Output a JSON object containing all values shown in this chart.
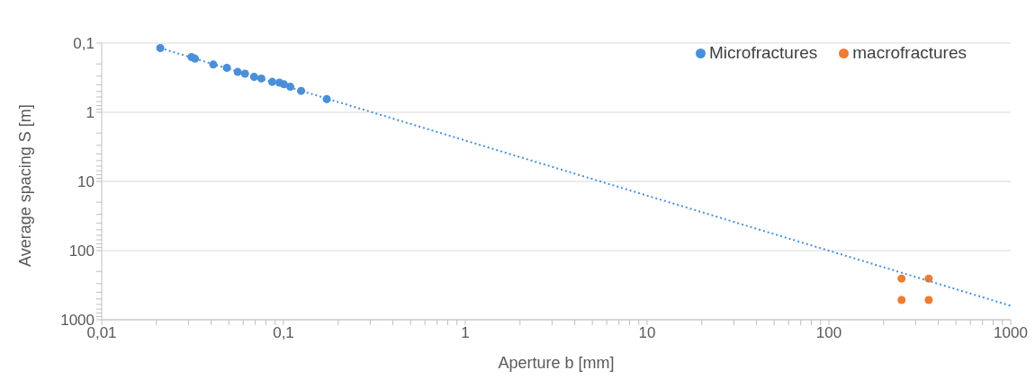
{
  "chart_data": {
    "type": "scatter",
    "xlabel": "Aperture b [mm]",
    "ylabel": "Average spacing S [m]",
    "log": "xy",
    "grid": "y",
    "legend": "top right",
    "marker": "circle",
    "xlim": [
      0.01,
      1000
    ],
    "ylim": [
      1000,
      0.1
    ],
    "xticks": [
      {
        "value": 0.01,
        "label": "0,01"
      },
      {
        "value": 0.02,
        "label": null
      },
      {
        "value": 0.03,
        "label": null
      },
      {
        "value": 0.04,
        "label": null
      },
      {
        "value": 0.05,
        "label": null
      },
      {
        "value": 0.06,
        "label": null
      },
      {
        "value": 0.07,
        "label": null
      },
      {
        "value": 0.08,
        "label": null
      },
      {
        "value": 0.09,
        "label": null
      },
      {
        "value": 0.1,
        "label": "0,1"
      },
      {
        "value": 0.2,
        "label": null
      },
      {
        "value": 0.3,
        "label": null
      },
      {
        "value": 0.4,
        "label": null
      },
      {
        "value": 0.5,
        "label": null
      },
      {
        "value": 0.6,
        "label": null
      },
      {
        "value": 0.7,
        "label": null
      },
      {
        "value": 0.8,
        "label": null
      },
      {
        "value": 0.9,
        "label": null
      },
      1,
      {
        "value": 2,
        "label": null
      },
      {
        "value": 3,
        "label": null
      },
      {
        "value": 4,
        "label": null
      },
      {
        "value": 5,
        "label": null
      },
      {
        "value": 6,
        "label": null
      },
      {
        "value": 7,
        "label": null
      },
      {
        "value": 8,
        "label": null
      },
      {
        "value": 9,
        "label": null
      },
      10,
      {
        "value": 20,
        "label": null
      },
      {
        "value": 30,
        "label": null
      },
      {
        "value": 40,
        "label": null
      },
      {
        "value": 50,
        "label": null
      },
      {
        "value": 60,
        "label": null
      },
      {
        "value": 70,
        "label": null
      },
      {
        "value": 80,
        "label": null
      },
      {
        "value": 90,
        "label": null
      },
      100,
      {
        "value": 200,
        "label": null
      },
      {
        "value": 300,
        "label": null
      },
      {
        "value": 400,
        "label": null
      },
      {
        "value": 500,
        "label": null
      },
      {
        "value": 600,
        "label": null
      },
      {
        "value": 700,
        "label": null
      },
      {
        "value": 800,
        "label": null
      },
      {
        "value": 900,
        "label": null
      },
      1000
    ],
    "yticks": [
      {
        "value": 0.1,
        "label": "0,1"
      },
      {
        "value": 0.2,
        "label": null
      },
      {
        "value": 0.3,
        "label": null
      },
      {
        "value": 0.4,
        "label": null
      },
      {
        "value": 0.5,
        "label": null
      },
      {
        "value": 0.6,
        "label": null
      },
      {
        "value": 0.7,
        "label": null
      },
      {
        "value": 0.8,
        "label": null
      },
      {
        "value": 0.9,
        "label": null
      },
      1,
      {
        "value": 2,
        "label": null
      },
      {
        "value": 3,
        "label": null
      },
      {
        "value": 4,
        "label": null
      },
      {
        "value": 5,
        "label": null
      },
      {
        "value": 6,
        "label": null
      },
      {
        "value": 7,
        "label": null
      },
      {
        "value": 8,
        "label": null
      },
      {
        "value": 9,
        "label": null
      },
      10,
      {
        "value": 20,
        "label": null
      },
      {
        "value": 30,
        "label": null
      },
      {
        "value": 40,
        "label": null
      },
      {
        "value": 50,
        "label": null
      },
      {
        "value": 60,
        "label": null
      },
      {
        "value": 70,
        "label": null
      },
      {
        "value": 80,
        "label": null
      },
      {
        "value": 90,
        "label": null
      },
      100,
      {
        "value": 200,
        "label": null
      },
      {
        "value": 300,
        "label": null
      },
      {
        "value": 400,
        "label": null
      },
      {
        "value": 500,
        "label": null
      },
      {
        "value": 600,
        "label": null
      },
      {
        "value": 700,
        "label": null
      },
      {
        "value": 800,
        "label": null
      },
      {
        "value": 900,
        "label": null
      },
      1000
    ],
    "series": [
      {
        "name": "Microfractures",
        "color": "#4a90d9",
        "x": [
          0.021,
          0.0291,
          0.0301,
          0.0312,
          0.0326,
          0.0411,
          0.0488,
          0.056,
          0.0614,
          0.0689,
          0.0755,
          0.0867,
          0.095,
          0.1005,
          0.109,
          0.125,
          0.173
        ],
        "values": [
          0.118,
          null,
          null,
          0.159,
          0.168,
          0.204,
          0.228,
          0.261,
          0.276,
          0.308,
          0.325,
          0.363,
          0.373,
          0.394,
          0.428,
          0.49,
          0.646
        ]
      },
      {
        "name": "macrofractures",
        "color": "#ed7d31",
        "x": [
          251,
          354,
          251,
          354
        ],
        "values": [
          254,
          254,
          518,
          518
        ]
      },
      {
        "type": "line",
        "color": "#4a90d9",
        "line_style": "dotted",
        "marker": "none",
        "x": [
          0.021,
          1000
        ],
        "values": [
          0.118,
          628
        ]
      }
    ]
  }
}
